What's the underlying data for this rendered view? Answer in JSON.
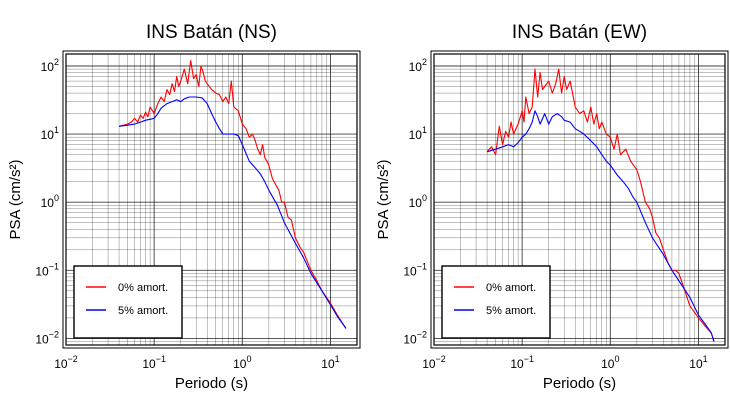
{
  "colors": {
    "red": "#ff0000",
    "blue": "#0000ff",
    "grid": "#000000",
    "frame": "#000000"
  },
  "chart_data": [
    {
      "type": "line",
      "title": "INS Batán (NS)",
      "xlabel": "Periodo (s)",
      "ylabel": "PSA (cm/s²)",
      "xscale": "log",
      "yscale": "log",
      "xlim": [
        0.01,
        20
      ],
      "ylim": [
        0.008,
        150
      ],
      "xticks": [
        {
          "value": 0.01,
          "base": "10",
          "exp": "−2"
        },
        {
          "value": 0.1,
          "base": "10",
          "exp": "−1"
        },
        {
          "value": 1,
          "base": "10",
          "exp": "0"
        },
        {
          "value": 10,
          "base": "10",
          "exp": "1"
        }
      ],
      "yticks": [
        {
          "value": 0.01,
          "base": "10",
          "exp": "−2"
        },
        {
          "value": 0.1,
          "base": "10",
          "exp": "−1"
        },
        {
          "value": 1,
          "base": "10",
          "exp": "0"
        },
        {
          "value": 10,
          "base": "10",
          "exp": "1"
        },
        {
          "value": 100,
          "base": "10",
          "exp": "2"
        }
      ],
      "grid": true,
      "legend_position": "bottom-left",
      "series": [
        {
          "name": "0% amort.",
          "color": "#ff0000",
          "x": [
            0.04,
            0.05,
            0.055,
            0.06,
            0.065,
            0.07,
            0.075,
            0.08,
            0.085,
            0.09,
            0.1,
            0.11,
            0.12,
            0.13,
            0.14,
            0.15,
            0.16,
            0.17,
            0.18,
            0.19,
            0.2,
            0.22,
            0.24,
            0.26,
            0.28,
            0.3,
            0.32,
            0.34,
            0.36,
            0.38,
            0.4,
            0.45,
            0.5,
            0.55,
            0.6,
            0.65,
            0.7,
            0.75,
            0.8,
            0.9,
            1.0,
            1.1,
            1.2,
            1.3,
            1.4,
            1.5,
            1.6,
            1.7,
            1.8,
            1.9,
            2.0,
            2.2,
            2.4,
            2.6,
            2.8,
            3.0,
            3.3,
            3.6,
            4.0,
            4.5,
            5.0,
            6.0,
            7.0,
            8.0,
            10.0,
            12.0,
            14.0,
            15.0
          ],
          "y": [
            13,
            14,
            15,
            17,
            15,
            19,
            17,
            21,
            18,
            25,
            20,
            28,
            35,
            30,
            45,
            38,
            55,
            42,
            70,
            50,
            60,
            90,
            55,
            120,
            65,
            75,
            50,
            100,
            80,
            60,
            55,
            45,
            40,
            38,
            30,
            35,
            28,
            60,
            25,
            22,
            14,
            12,
            9,
            10,
            8,
            6,
            5,
            7,
            4.5,
            4,
            3.5,
            2.2,
            1.8,
            1.5,
            1.0,
            1.0,
            0.6,
            0.55,
            0.3,
            0.22,
            0.18,
            0.1,
            0.07,
            0.05,
            0.033,
            0.022,
            0.016,
            0.014
          ]
        },
        {
          "name": "5% amort.",
          "color": "#0000ff",
          "x": [
            0.04,
            0.05,
            0.06,
            0.07,
            0.08,
            0.09,
            0.1,
            0.11,
            0.12,
            0.14,
            0.16,
            0.18,
            0.2,
            0.22,
            0.25,
            0.3,
            0.35,
            0.4,
            0.45,
            0.5,
            0.55,
            0.6,
            0.7,
            0.8,
            0.9,
            1.0,
            1.2,
            1.4,
            1.6,
            1.8,
            2.0,
            2.5,
            3.0,
            4.0,
            5.0,
            6.0,
            8.0,
            10.0,
            12.0,
            14.0,
            15.0
          ],
          "y": [
            13,
            13.5,
            14,
            15,
            16,
            16.5,
            17,
            20,
            24,
            28,
            30,
            32,
            30,
            33,
            35,
            35,
            34,
            28,
            20,
            15,
            12,
            10,
            10,
            10,
            9.5,
            7,
            4,
            3.2,
            2.6,
            2.0,
            1.5,
            0.9,
            0.5,
            0.25,
            0.15,
            0.09,
            0.05,
            0.031,
            0.021,
            0.016,
            0.014
          ]
        }
      ]
    },
    {
      "type": "line",
      "title": "INS Batán (EW)",
      "xlabel": "Periodo (s)",
      "ylabel": "PSA (cm/s²)",
      "xscale": "log",
      "yscale": "log",
      "xlim": [
        0.01,
        20
      ],
      "ylim": [
        0.008,
        150
      ],
      "xticks": [
        {
          "value": 0.01,
          "base": "10",
          "exp": "−2"
        },
        {
          "value": 0.1,
          "base": "10",
          "exp": "−1"
        },
        {
          "value": 1,
          "base": "10",
          "exp": "0"
        },
        {
          "value": 10,
          "base": "10",
          "exp": "1"
        }
      ],
      "yticks": [
        {
          "value": 0.01,
          "base": "10",
          "exp": "−2"
        },
        {
          "value": 0.1,
          "base": "10",
          "exp": "−1"
        },
        {
          "value": 1,
          "base": "10",
          "exp": "0"
        },
        {
          "value": 10,
          "base": "10",
          "exp": "1"
        },
        {
          "value": 100,
          "base": "10",
          "exp": "2"
        }
      ],
      "grid": true,
      "legend_position": "bottom-left",
      "series": [
        {
          "name": "0% amort.",
          "color": "#ff0000",
          "x": [
            0.04,
            0.045,
            0.05,
            0.055,
            0.06,
            0.065,
            0.07,
            0.075,
            0.08,
            0.09,
            0.1,
            0.105,
            0.11,
            0.12,
            0.13,
            0.14,
            0.15,
            0.16,
            0.17,
            0.18,
            0.2,
            0.22,
            0.24,
            0.26,
            0.28,
            0.3,
            0.32,
            0.35,
            0.38,
            0.4,
            0.45,
            0.5,
            0.55,
            0.6,
            0.65,
            0.7,
            0.75,
            0.8,
            0.9,
            1.0,
            1.1,
            1.2,
            1.3,
            1.5,
            1.7,
            2.0,
            2.2,
            2.5,
            2.8,
            3.0,
            3.3,
            3.6,
            4.0,
            4.5,
            5.0,
            5.5,
            6.0,
            7.0,
            8.0,
            10.0,
            12.0,
            14.0,
            15.0
          ],
          "y": [
            5.5,
            6.5,
            5.0,
            13,
            7,
            11,
            9,
            15,
            10,
            14,
            22,
            15,
            35,
            20,
            25,
            90,
            35,
            80,
            45,
            50,
            60,
            40,
            55,
            90,
            40,
            70,
            45,
            60,
            35,
            25,
            20,
            22,
            15,
            25,
            14,
            20,
            12,
            15,
            10,
            9,
            6,
            10,
            5,
            6,
            4,
            3.0,
            2.0,
            1.0,
            0.8,
            0.6,
            0.35,
            0.3,
            0.2,
            0.13,
            0.1,
            0.1,
            0.09,
            0.05,
            0.03,
            0.02,
            0.015,
            0.012,
            0.009
          ]
        },
        {
          "name": "5% amort.",
          "color": "#0000ff",
          "x": [
            0.04,
            0.05,
            0.06,
            0.07,
            0.08,
            0.09,
            0.1,
            0.11,
            0.12,
            0.13,
            0.14,
            0.15,
            0.16,
            0.18,
            0.2,
            0.22,
            0.25,
            0.28,
            0.3,
            0.35,
            0.4,
            0.45,
            0.5,
            0.6,
            0.7,
            0.8,
            0.9,
            1.0,
            1.2,
            1.4,
            1.6,
            1.8,
            2.0,
            2.5,
            3.0,
            4.0,
            5.0,
            6.0,
            8.0,
            10.0,
            12.0,
            14.0,
            15.0
          ],
          "y": [
            5.5,
            6.0,
            6.5,
            7,
            6.5,
            7.5,
            9,
            10,
            12,
            15,
            22,
            18,
            14,
            20,
            14,
            18,
            20,
            18,
            16,
            15,
            12,
            11,
            10,
            8,
            6.5,
            5,
            4,
            3.5,
            2.5,
            2.0,
            1.6,
            1.2,
            1.0,
            0.5,
            0.3,
            0.17,
            0.1,
            0.07,
            0.04,
            0.022,
            0.016,
            0.012,
            0.009
          ]
        }
      ]
    }
  ]
}
